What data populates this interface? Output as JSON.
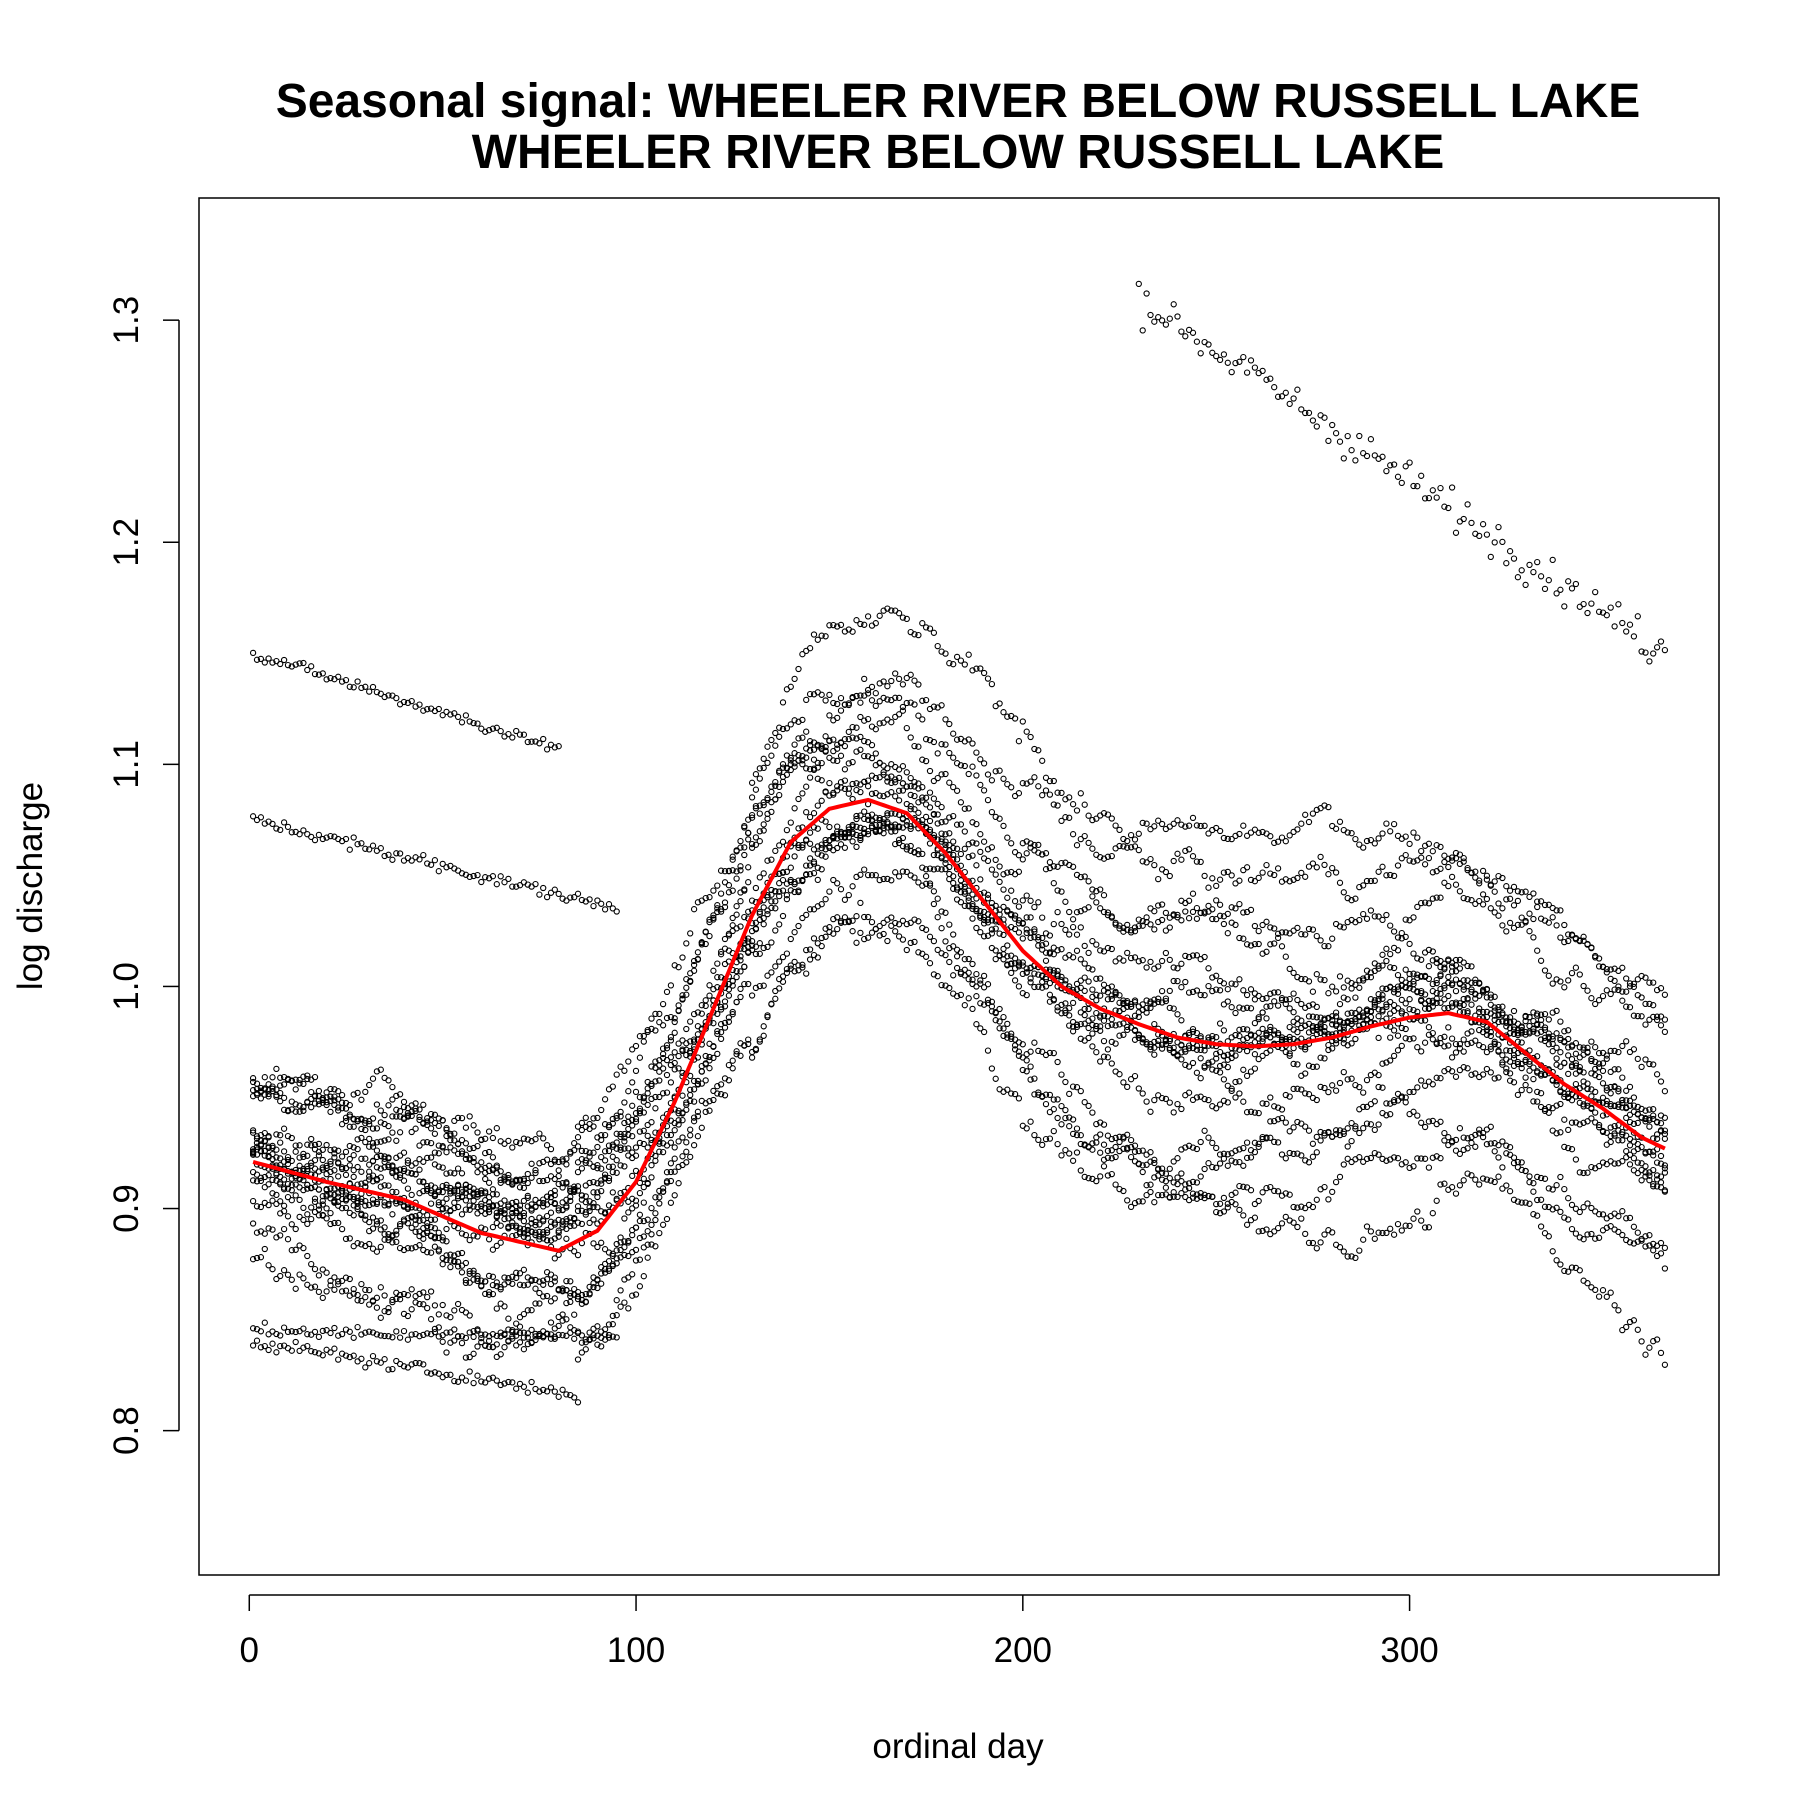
{
  "chart_data": {
    "type": "scatter",
    "title": "Seasonal signal: WHEELER RIVER BELOW RUSSELL LAKE",
    "subtitle": "WHEELER RIVER BELOW RUSSELL LAKE",
    "xlabel": "ordinal day",
    "ylabel": "log discharge",
    "xlim": [
      -13,
      380
    ],
    "ylim": [
      0.735,
      1.355
    ],
    "x_ticks": [
      0,
      100,
      200,
      300
    ],
    "x_tick_labels": [
      "0",
      "100",
      "200",
      "300"
    ],
    "y_ticks": [
      0.8,
      0.9,
      1.0,
      1.1,
      1.2,
      1.3
    ],
    "y_tick_labels": [
      "0.8",
      "0.9",
      "1.0",
      "1.1",
      "1.2",
      "1.3"
    ],
    "grid": false,
    "colors": {
      "points": "#000000",
      "smooth": "#ff0000"
    },
    "point_series": {
      "name": "",
      "description_ranges": {
        "x_min": 1,
        "x_max": 366,
        "y_min": 0.76,
        "y_max": 1.33
      }
    },
    "trend_lines": [
      {
        "y_start": 1.15,
        "y_mid": 1.107,
        "x_start": 1,
        "x_end": 80
      },
      {
        "y_start": 1.075,
        "y_mid": 1.035,
        "x_start": 1,
        "x_end": 95
      },
      {
        "y_start": 0.84,
        "y_mid": 0.816,
        "x_start": 1,
        "x_end": 85
      },
      {
        "y_start": 0.845,
        "y_mid": 0.842,
        "x_start": 1,
        "x_end": 95
      }
    ],
    "smooth_series": {
      "name": "",
      "x": [
        1,
        20,
        40,
        60,
        80,
        90,
        100,
        110,
        120,
        130,
        140,
        150,
        160,
        170,
        180,
        190,
        200,
        210,
        220,
        230,
        240,
        250,
        260,
        270,
        280,
        290,
        300,
        310,
        320,
        330,
        340,
        350,
        360,
        366
      ],
      "y": [
        0.921,
        0.912,
        0.904,
        0.889,
        0.881,
        0.89,
        0.912,
        0.948,
        0.99,
        1.032,
        1.065,
        1.08,
        1.084,
        1.078,
        1.06,
        1.038,
        1.016,
        1.0,
        0.99,
        0.983,
        0.977,
        0.974,
        0.973,
        0.974,
        0.977,
        0.982,
        0.986,
        0.988,
        0.984,
        0.97,
        0.956,
        0.945,
        0.932,
        0.927
      ]
    }
  }
}
